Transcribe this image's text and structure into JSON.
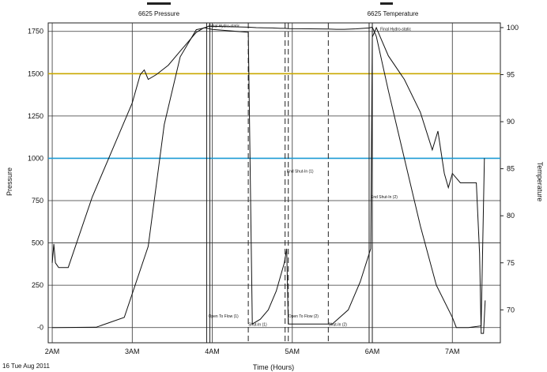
{
  "footer": {
    "date_label": "16 Tue Aug 2011"
  },
  "chart_data": {
    "type": "line",
    "legend": [
      "6625 Pressure",
      "6625 Temperature"
    ],
    "xlabel": "Time (Hours)",
    "ylabel_left": "Pressure",
    "ylabel_right": "Temperature",
    "x_ticks": [
      "2AM",
      "3AM",
      "4AM",
      "5AM",
      "6AM",
      "7AM"
    ],
    "x_tick_values": [
      2,
      3,
      4,
      5,
      6,
      7
    ],
    "xlim": [
      1.95,
      7.6
    ],
    "y_left_ticks": [
      0,
      250,
      500,
      750,
      1000,
      1250,
      1500,
      1750
    ],
    "y_left_tick_labels": [
      "-0",
      "250",
      "500",
      "750",
      "1000",
      "1250",
      "1500",
      "1750"
    ],
    "ylim_left": [
      -90,
      1800
    ],
    "y_right_ticks": [
      70,
      75,
      80,
      85,
      90,
      95,
      100
    ],
    "ylim_right": [
      66.5,
      100.5
    ],
    "grid": true,
    "reference_lines": [
      {
        "value": 1500,
        "color": "#c9a800"
      },
      {
        "value": 1000,
        "color": "#1e9bd4"
      }
    ],
    "event_lines": [
      {
        "x": 3.93,
        "style": "solid"
      },
      {
        "x": 3.97,
        "style": "solid"
      },
      {
        "x": 4.45,
        "style": "dashed"
      },
      {
        "x": 4.91,
        "style": "dashed"
      },
      {
        "x": 4.95,
        "style": "dashed"
      },
      {
        "x": 5.45,
        "style": "dashed"
      },
      {
        "x": 5.96,
        "style": "solid"
      },
      {
        "x": 6.0,
        "style": "solid"
      }
    ],
    "annotations": [
      {
        "text": "Initial Hydro-static",
        "x": 3.95,
        "y": 1775
      },
      {
        "text": "Final Hydro-static",
        "x": 6.1,
        "y": 1755
      },
      {
        "text": "End Shut-In (1)",
        "x": 4.93,
        "y": 915
      },
      {
        "text": "End Shut-In (2)",
        "x": 5.98,
        "y": 765
      },
      {
        "text": "Open To Flow (1)",
        "x": 3.95,
        "y": 60
      },
      {
        "text": "Shut-In (1)",
        "x": 4.45,
        "y": 10
      },
      {
        "text": "Open To Flow (2)",
        "x": 4.95,
        "y": 60
      },
      {
        "text": "Shut-In (2)",
        "x": 5.45,
        "y": 10
      }
    ],
    "series": [
      {
        "name": "6625 Pressure",
        "axis": "left",
        "x": [
          2.0,
          2.04,
          2.55,
          2.9,
          3.2,
          3.4,
          3.6,
          3.8,
          3.9,
          3.95,
          4.45,
          4.55,
          4.65,
          4.75,
          4.85,
          4.91,
          4.95,
          5.45,
          5.55,
          5.65,
          5.8,
          5.96,
          6.0,
          6.05,
          6.2,
          6.4,
          6.6,
          6.8,
          7.0,
          7.05,
          7.2,
          7.36,
          7.4
        ],
        "y": [
          0,
          0,
          2,
          60,
          480,
          1200,
          1600,
          1760,
          1770,
          1780,
          1775,
          1772,
          1771,
          1770,
          1768,
          1768,
          1766,
          1764,
          1762,
          1762,
          1765,
          1770,
          1775,
          1720,
          1400,
          1000,
          600,
          250,
          60,
          0,
          0,
          10,
          1000
        ]
      },
      {
        "name": "6625 Temperature",
        "axis": "right",
        "x": [
          2.0,
          2.02,
          2.04,
          2.08,
          2.2,
          2.5,
          2.8,
          3.0,
          3.1,
          3.15,
          3.2,
          3.3,
          3.45,
          3.6,
          3.7,
          3.8,
          3.9,
          4.0,
          4.45,
          4.5,
          4.6,
          4.7,
          4.8,
          4.9,
          4.93,
          4.95,
          5.0,
          5.45,
          5.5,
          5.7,
          5.85,
          5.98,
          6.0,
          6.05,
          6.1,
          6.2,
          6.4,
          6.6,
          6.75,
          6.82,
          6.9,
          6.95,
          7.0,
          7.1,
          7.3,
          7.34,
          7.36,
          7.39,
          7.41
        ],
        "y": [
          75,
          77,
          75,
          74.5,
          74.5,
          82,
          88,
          92,
          95,
          95.5,
          94.5,
          95,
          96,
          97.5,
          98.5,
          99.5,
          100,
          99.8,
          99.5,
          68.5,
          69,
          70,
          72,
          75,
          76.5,
          68.5,
          68.5,
          68.5,
          68.5,
          70,
          73,
          76.5,
          99,
          100,
          99,
          97,
          94.5,
          91,
          87,
          89,
          84.5,
          83,
          84.5,
          83.5,
          83.5,
          76,
          67.5,
          67.5,
          71
        ]
      }
    ]
  }
}
